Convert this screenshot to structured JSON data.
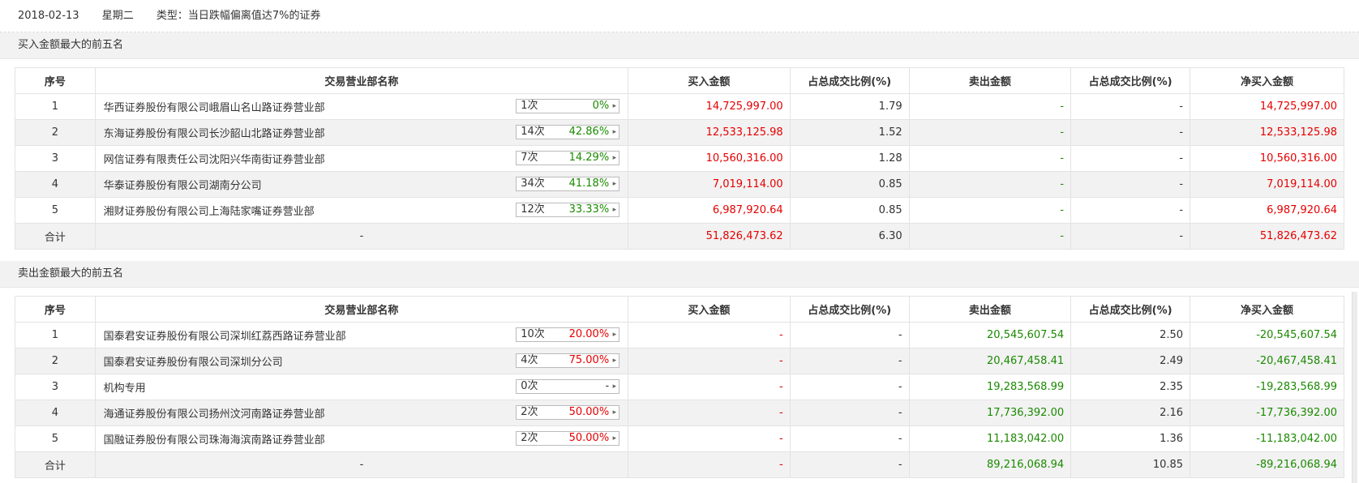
{
  "header": {
    "date": "2018-02-13",
    "weekday": "星期二",
    "type": "类型：当日跌幅偏离值达7%的证券"
  },
  "buy_section": {
    "title": "买入金额最大的前五名",
    "columns": [
      "序号",
      "交易营业部名称",
      "买入金额",
      "占总成交比例(%)",
      "卖出金额",
      "占总成交比例(%)",
      "净买入金额"
    ],
    "rows": [
      {
        "no": "1",
        "name": "华西证券股份有限公司峨眉山名山路证券营业部",
        "count": "1次",
        "pct": "0%",
        "buy": "14,725,997.00",
        "buy_ratio": "1.79",
        "sell": "-",
        "sell_ratio": "-",
        "net": "14,725,997.00"
      },
      {
        "no": "2",
        "name": "东海证券股份有限公司长沙韶山北路证券营业部",
        "count": "14次",
        "pct": "42.86%",
        "buy": "12,533,125.98",
        "buy_ratio": "1.52",
        "sell": "-",
        "sell_ratio": "-",
        "net": "12,533,125.98"
      },
      {
        "no": "3",
        "name": "网信证券有限责任公司沈阳兴华南街证券营业部",
        "count": "7次",
        "pct": "14.29%",
        "buy": "10,560,316.00",
        "buy_ratio": "1.28",
        "sell": "-",
        "sell_ratio": "-",
        "net": "10,560,316.00"
      },
      {
        "no": "4",
        "name": "华泰证券股份有限公司湖南分公司",
        "count": "34次",
        "pct": "41.18%",
        "buy": "7,019,114.00",
        "buy_ratio": "0.85",
        "sell": "-",
        "sell_ratio": "-",
        "net": "7,019,114.00"
      },
      {
        "no": "5",
        "name": "湘财证券股份有限公司上海陆家嘴证券营业部",
        "count": "12次",
        "pct": "33.33%",
        "buy": "6,987,920.64",
        "buy_ratio": "0.85",
        "sell": "-",
        "sell_ratio": "-",
        "net": "6,987,920.64"
      }
    ],
    "total": {
      "label": "合计",
      "name": "-",
      "buy": "51,826,473.62",
      "buy_ratio": "6.30",
      "sell": "-",
      "sell_ratio": "-",
      "net": "51,826,473.62"
    }
  },
  "sell_section": {
    "title": "卖出金额最大的前五名",
    "columns": [
      "序号",
      "交易营业部名称",
      "买入金额",
      "占总成交比例(%)",
      "卖出金额",
      "占总成交比例(%)",
      "净买入金额"
    ],
    "rows": [
      {
        "no": "1",
        "name": "国泰君安证券股份有限公司深圳红荔西路证券营业部",
        "count": "10次",
        "pct": "20.00%",
        "buy": "-",
        "buy_ratio": "-",
        "sell": "20,545,607.54",
        "sell_ratio": "2.50",
        "net": "-20,545,607.54"
      },
      {
        "no": "2",
        "name": "国泰君安证券股份有限公司深圳分公司",
        "count": "4次",
        "pct": "75.00%",
        "buy": "-",
        "buy_ratio": "-",
        "sell": "20,467,458.41",
        "sell_ratio": "2.49",
        "net": "-20,467,458.41"
      },
      {
        "no": "3",
        "name": "机构专用",
        "count": "0次",
        "pct": "-",
        "buy": "-",
        "buy_ratio": "-",
        "sell": "19,283,568.99",
        "sell_ratio": "2.35",
        "net": "-19,283,568.99"
      },
      {
        "no": "4",
        "name": "海通证券股份有限公司扬州汶河南路证券营业部",
        "count": "2次",
        "pct": "50.00%",
        "buy": "-",
        "buy_ratio": "-",
        "sell": "17,736,392.00",
        "sell_ratio": "2.16",
        "net": "-17,736,392.00"
      },
      {
        "no": "5",
        "name": "国融证券股份有限公司珠海海滨南路证券营业部",
        "count": "2次",
        "pct": "50.00%",
        "buy": "-",
        "buy_ratio": "-",
        "sell": "11,183,042.00",
        "sell_ratio": "1.36",
        "net": "-11,183,042.00"
      }
    ],
    "total": {
      "label": "合计",
      "name": "-",
      "buy": "-",
      "buy_ratio": "-",
      "sell": "89,216,068.94",
      "sell_ratio": "10.85",
      "net": "-89,216,068.94"
    }
  },
  "colors": {
    "red": "#e60000",
    "green": "#1a8a00"
  }
}
